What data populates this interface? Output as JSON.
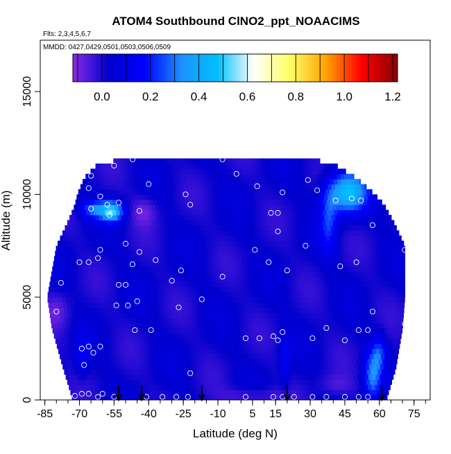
{
  "chart_data": {
    "type": "heatmap",
    "title": "ATOM4 Southbound ClNO2_ppt_NOAACIMS",
    "subtitle_flights": "Flts: 2,3,4,5,6,7",
    "subtitle_dates": "MMDD: 0427,0429,0501,0503,0506,0509",
    "xlabel": "Latitude (deg N)",
    "ylabel": "Altitude (m)",
    "xlim": [
      -87,
      82
    ],
    "ylim": [
      0,
      17500
    ],
    "x_ticks": [
      -85,
      -70,
      -55,
      -40,
      -25,
      -10,
      5,
      15,
      30,
      45,
      60,
      75
    ],
    "x_tick_labels": [
      "-85",
      "-70",
      "-55",
      "-40",
      "-25",
      "-10",
      "5",
      "15",
      "30",
      "45",
      "60",
      "75"
    ],
    "x_minor_step": 5,
    "y_ticks": [
      0,
      5000,
      10000,
      15000
    ],
    "y_tick_labels": [
      "0",
      "5000",
      "10000",
      "15000"
    ],
    "colorbar": {
      "range": [
        -0.12,
        1.22
      ],
      "ticks": [
        0.0,
        0.2,
        0.4,
        0.6,
        0.8,
        1.0,
        1.2
      ],
      "tick_labels": [
        "0.0",
        "0.2",
        "0.4",
        "0.6",
        "0.8",
        "1.0",
        "1.2"
      ],
      "colors": [
        "#8a2be2",
        "#0000cd",
        "#0000ff",
        "#1e90ff",
        "#00bfff",
        "#ffffff",
        "#ffff66",
        "#ffa500",
        "#ff0000",
        "#8b0000"
      ]
    },
    "base_value": 0.02,
    "features": [
      {
        "lat": 46,
        "alt": 10100,
        "amp": 0.45,
        "sx": 6,
        "sy": 700,
        "label": "upper plume"
      },
      {
        "lat": 38,
        "alt": 8700,
        "amp": 0.2,
        "sx": 2.5,
        "sy": 1100,
        "label": "upper plume tail"
      },
      {
        "lat": -56,
        "alt": 9200,
        "amp": 0.48,
        "sx": 3.5,
        "sy": 350,
        "label": "southern plume"
      },
      {
        "lat": -64,
        "alt": 9300,
        "amp": 0.25,
        "sx": 4,
        "sy": 300,
        "label": "southern plume west"
      },
      {
        "lat": 57,
        "alt": 1200,
        "amp": 0.28,
        "sx": 2.5,
        "sy": 900,
        "label": "low NH plume"
      },
      {
        "lat": 60,
        "alt": 2300,
        "amp": 0.18,
        "sx": 2,
        "sy": 600,
        "label": "low NH plume upper"
      },
      {
        "lat": 19,
        "alt": 2000,
        "amp": 0.12,
        "sx": 1.5,
        "sy": 1000,
        "label": "mid low plume"
      },
      {
        "lat": -69,
        "alt": 2200,
        "amp": 0.12,
        "sx": 2,
        "sy": 700,
        "label": "SH low plume"
      },
      {
        "lat": -42,
        "alt": 9200,
        "amp": -0.1,
        "sx": 4,
        "sy": 500,
        "label": "purple pocket"
      },
      {
        "lat": 5,
        "alt": 200,
        "amp": -0.09,
        "sx": 9,
        "sy": 300,
        "label": "surface purple"
      },
      {
        "lat": -80,
        "alt": 4400,
        "amp": -0.08,
        "sx": 4,
        "sy": 600,
        "label": "SH purple"
      },
      {
        "lat": 41,
        "alt": 700,
        "amp": -0.07,
        "sx": 5,
        "sy": 400,
        "label": "purple patch"
      }
    ],
    "envelope": [
      {
        "alt": 0,
        "min": -73,
        "max": 63
      },
      {
        "alt": 400,
        "min": -74,
        "max": 64
      },
      {
        "alt": 1500,
        "min": -77,
        "max": 67
      },
      {
        "alt": 3500,
        "min": -82,
        "max": 70
      },
      {
        "alt": 5000,
        "min": -84,
        "max": 71
      },
      {
        "alt": 7500,
        "min": -80,
        "max": 71
      },
      {
        "alt": 8700,
        "min": -75,
        "max": 66
      },
      {
        "alt": 9500,
        "min": -72,
        "max": 62
      },
      {
        "alt": 10000,
        "min": -71,
        "max": 58
      },
      {
        "alt": 10800,
        "min": -68,
        "max": 50
      },
      {
        "alt": 11500,
        "min": -62,
        "max": 40
      },
      {
        "alt": 11800,
        "min": -46,
        "max": 26
      }
    ],
    "sample_points": [
      {
        "lat": -68,
        "alt": 11700
      },
      {
        "lat": -65,
        "alt": 10900
      },
      {
        "lat": -66,
        "alt": 10300
      },
      {
        "lat": -55,
        "alt": 11400
      },
      {
        "lat": -47,
        "alt": 11700
      },
      {
        "lat": -40,
        "alt": 10500
      },
      {
        "lat": -24,
        "alt": 10000
      },
      {
        "lat": -22,
        "alt": 9500
      },
      {
        "lat": -8,
        "alt": 11700
      },
      {
        "lat": -2,
        "alt": 11000
      },
      {
        "lat": 7,
        "alt": 10400
      },
      {
        "lat": 13,
        "alt": 9100
      },
      {
        "lat": 16,
        "alt": 9100
      },
      {
        "lat": 18,
        "alt": 10100
      },
      {
        "lat": 29,
        "alt": 10700
      },
      {
        "lat": 33,
        "alt": 10200
      },
      {
        "lat": 41,
        "alt": 9700
      },
      {
        "lat": 48,
        "alt": 9800
      },
      {
        "lat": 52,
        "alt": 9700
      },
      {
        "lat": 57,
        "alt": 8500
      },
      {
        "lat": 16,
        "alt": 8200
      },
      {
        "lat": 28,
        "alt": 7500
      },
      {
        "lat": -61,
        "alt": 9900
      },
      {
        "lat": -58,
        "alt": 9500
      },
      {
        "lat": -53,
        "alt": 9600
      },
      {
        "lat": -57,
        "alt": 9000
      },
      {
        "lat": -44,
        "alt": 9200
      },
      {
        "lat": -82,
        "alt": 9300
      },
      {
        "lat": -65,
        "alt": 9300
      },
      {
        "lat": -50,
        "alt": 7600
      },
      {
        "lat": -44,
        "alt": 7200
      },
      {
        "lat": -61,
        "alt": 7300
      },
      {
        "lat": -70,
        "alt": 6700
      },
      {
        "lat": -66,
        "alt": 6700
      },
      {
        "lat": -62,
        "alt": 6900
      },
      {
        "lat": -47,
        "alt": 6600
      },
      {
        "lat": -37,
        "alt": 6800
      },
      {
        "lat": -26,
        "alt": 6300
      },
      {
        "lat": -8,
        "alt": 6000
      },
      {
        "lat": 6,
        "alt": 7300
      },
      {
        "lat": 12,
        "alt": 6700
      },
      {
        "lat": 20,
        "alt": 6300
      },
      {
        "lat": 43,
        "alt": 6500
      },
      {
        "lat": 50,
        "alt": 6700
      },
      {
        "lat": 71,
        "alt": 7300
      },
      {
        "lat": -86,
        "alt": 5700
      },
      {
        "lat": -78,
        "alt": 5700
      },
      {
        "lat": -53,
        "alt": 5600
      },
      {
        "lat": -50,
        "alt": 5600
      },
      {
        "lat": -30,
        "alt": 5800
      },
      {
        "lat": -45,
        "alt": 4800
      },
      {
        "lat": -17,
        "alt": 4900
      },
      {
        "lat": -54,
        "alt": 4600
      },
      {
        "lat": -49,
        "alt": 4600
      },
      {
        "lat": -80,
        "alt": 4300
      },
      {
        "lat": -27,
        "alt": 4500
      },
      {
        "lat": 57,
        "alt": 4300
      },
      {
        "lat": -46,
        "alt": 3400
      },
      {
        "lat": -39,
        "alt": 3400
      },
      {
        "lat": 71,
        "alt": 3700
      },
      {
        "lat": 2,
        "alt": 3000
      },
      {
        "lat": 8,
        "alt": 3000
      },
      {
        "lat": 14,
        "alt": 3100
      },
      {
        "lat": 18,
        "alt": 3300
      },
      {
        "lat": 16,
        "alt": 2900
      },
      {
        "lat": 31,
        "alt": 3000
      },
      {
        "lat": 37,
        "alt": 3500
      },
      {
        "lat": 45,
        "alt": 2900
      },
      {
        "lat": 51,
        "alt": 3400
      },
      {
        "lat": 55,
        "alt": 3400
      },
      {
        "lat": -69,
        "alt": 2500
      },
      {
        "lat": -66,
        "alt": 2600
      },
      {
        "lat": -61,
        "alt": 2600
      },
      {
        "lat": -64,
        "alt": 2300
      },
      {
        "lat": -68,
        "alt": 1700
      },
      {
        "lat": -22,
        "alt": 1300
      },
      {
        "lat": -72,
        "alt": 200
      },
      {
        "lat": -69,
        "alt": 300
      },
      {
        "lat": -66,
        "alt": 300
      },
      {
        "lat": -62,
        "alt": 150
      },
      {
        "lat": -60,
        "alt": 300
      },
      {
        "lat": -55,
        "alt": 150
      },
      {
        "lat": -41,
        "alt": 150
      },
      {
        "lat": -34,
        "alt": 150
      },
      {
        "lat": -28,
        "alt": 150
      },
      {
        "lat": -23,
        "alt": 150
      },
      {
        "lat": 2,
        "alt": 150
      },
      {
        "lat": 14,
        "alt": 150
      },
      {
        "lat": 18,
        "alt": 150
      },
      {
        "lat": 23,
        "alt": 150
      },
      {
        "lat": 31,
        "alt": 150
      },
      {
        "lat": 37,
        "alt": 150
      },
      {
        "lat": 45,
        "alt": 150
      },
      {
        "lat": 51,
        "alt": 150
      },
      {
        "lat": 55,
        "alt": 150
      }
    ],
    "arrows_lat": [
      -53,
      -43,
      -17,
      20,
      61
    ]
  }
}
